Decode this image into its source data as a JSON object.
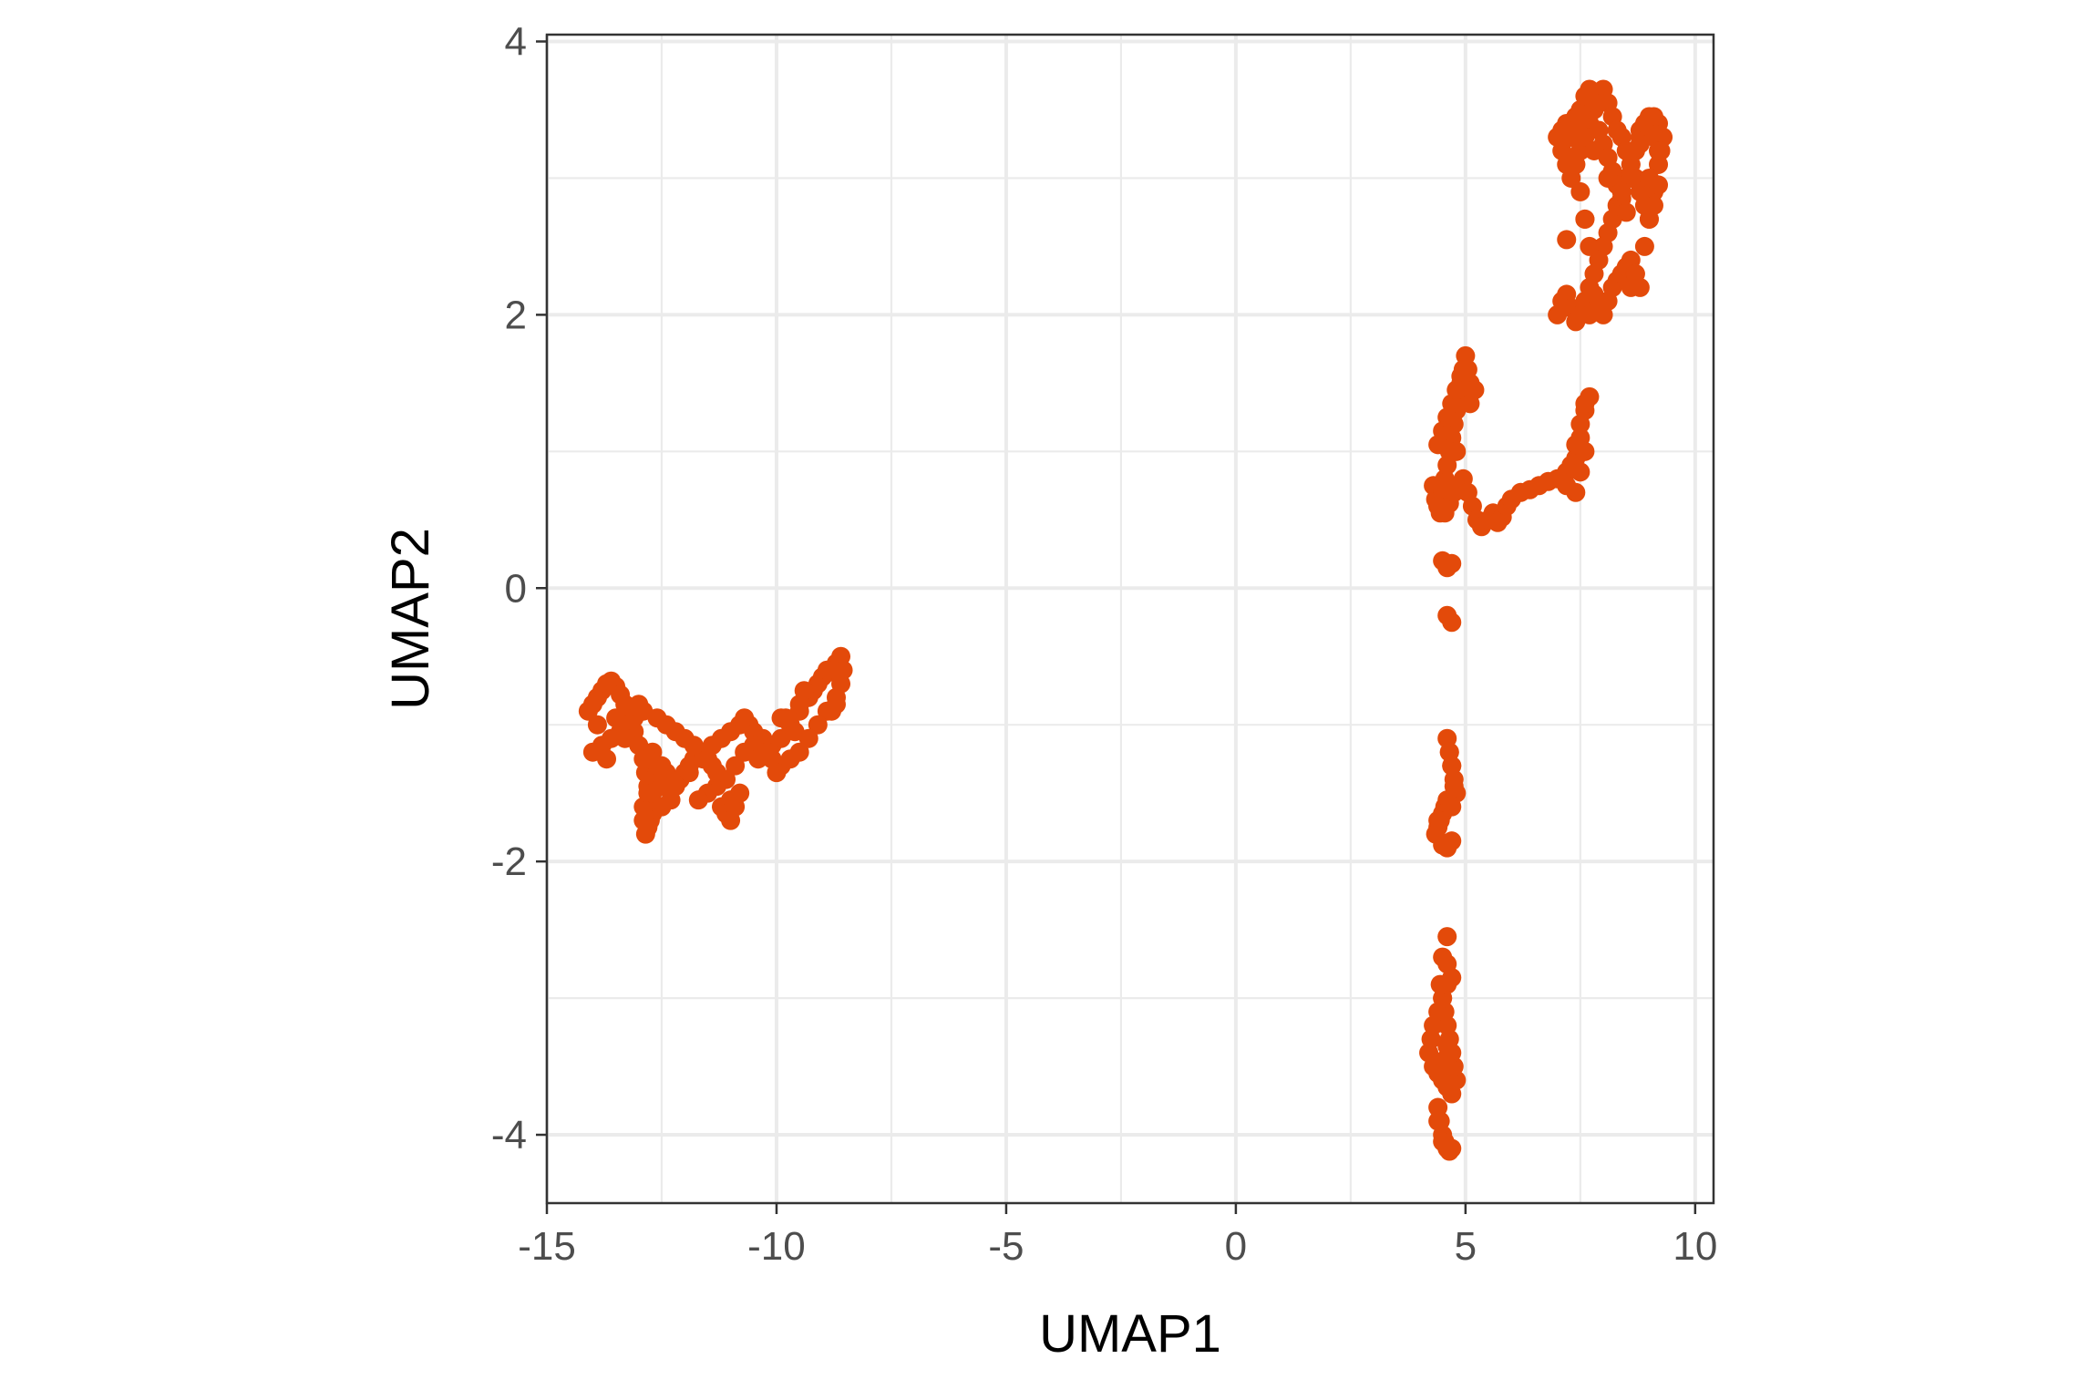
{
  "chart_data": {
    "type": "scatter",
    "title": "",
    "xlabel": "UMAP1",
    "ylabel": "UMAP2",
    "xlim": [
      -15,
      10.4
    ],
    "ylim": [
      -4.5,
      4.05
    ],
    "xticks": [
      -15,
      -10,
      -5,
      0,
      5,
      10
    ],
    "xtick_labels": [
      "-15",
      "-10",
      "-5",
      "0",
      "5",
      "10"
    ],
    "yticks": [
      -4,
      -2,
      0,
      2,
      4
    ],
    "ytick_labels": [
      "-4",
      "-2",
      "0",
      "2",
      "4"
    ],
    "grid": true,
    "legend": "none",
    "point_color": "#E34A0A",
    "panel_border_color": "#333333",
    "grid_color": "#EBEBEB",
    "series": [
      {
        "x": [
          -14.1,
          -14.0,
          -13.9,
          -13.8,
          -13.7,
          -13.6,
          -13.5,
          -13.4,
          -13.3,
          -13.2,
          -13.1,
          -13.0,
          -12.9,
          -12.85,
          -12.8,
          -12.75,
          -12.7,
          -12.75,
          -12.8,
          -12.85,
          -12.9,
          -12.9,
          -12.8,
          -12.7,
          -12.6,
          -12.5,
          -12.4,
          -12.3,
          -12.2,
          -12.1,
          -12.0,
          -11.9,
          -11.8,
          -11.6,
          -11.4,
          -11.2,
          -11.0,
          -10.8,
          -10.7,
          -10.6,
          -10.5,
          -10.3,
          -10.1,
          -9.9,
          -9.7,
          -9.5,
          -9.3,
          -9.1,
          -8.9,
          -8.7,
          -8.6,
          -8.55,
          -8.6,
          -8.7,
          -8.9,
          -9.1,
          -9.3,
          -9.5,
          -9.7,
          -9.9,
          -10.1,
          -10.3,
          -10.5,
          -10.7,
          -10.9,
          -11.1,
          -11.3,
          -11.5,
          -11.0,
          -11.2,
          -11.1,
          -11.0,
          -10.9,
          -10.8,
          -11.3,
          -11.6,
          -11.8,
          -12.0,
          -12.2,
          -12.4,
          -12.6,
          -12.9,
          -13.1,
          -13.2,
          -13.4,
          -13.6,
          -13.8,
          -14.0,
          -13.9,
          -13.7,
          -13.3,
          -12.7,
          -12.5,
          -12.6,
          -12.7,
          -12.5,
          -11.9,
          -10.4,
          -9.9,
          -9.5,
          -9.2,
          -9.0,
          -8.8,
          -9.6,
          -10.0,
          -10.2,
          -11.4,
          -11.7,
          -12.3,
          -12.8,
          -13.5,
          -13.0,
          -9.8,
          -8.9,
          -8.7,
          -9.4,
          -10.7,
          -11.5
        ],
        "y": [
          -0.9,
          -0.85,
          -0.8,
          -0.75,
          -0.7,
          -0.68,
          -0.72,
          -0.78,
          -0.85,
          -0.95,
          -1.05,
          -1.15,
          -1.25,
          -1.35,
          -1.45,
          -1.55,
          -1.65,
          -1.7,
          -1.75,
          -1.8,
          -1.7,
          -1.6,
          -1.5,
          -1.4,
          -1.35,
          -1.3,
          -1.35,
          -1.4,
          -1.45,
          -1.4,
          -1.35,
          -1.3,
          -1.25,
          -1.2,
          -1.15,
          -1.1,
          -1.05,
          -1.0,
          -0.98,
          -1.0,
          -1.05,
          -1.1,
          -1.15,
          -1.1,
          -1.0,
          -0.9,
          -0.8,
          -0.7,
          -0.62,
          -0.55,
          -0.5,
          -0.6,
          -0.7,
          -0.8,
          -0.9,
          -1.0,
          -1.1,
          -1.2,
          -1.25,
          -1.3,
          -1.25,
          -1.2,
          -1.15,
          -1.2,
          -1.3,
          -1.4,
          -1.45,
          -1.5,
          -1.55,
          -1.6,
          -1.65,
          -1.7,
          -1.6,
          -1.5,
          -1.35,
          -1.25,
          -1.15,
          -1.1,
          -1.05,
          -1.0,
          -0.95,
          -0.9,
          -0.95,
          -1.0,
          -1.05,
          -1.1,
          -1.15,
          -1.2,
          -1.0,
          -1.25,
          -1.1,
          -1.5,
          -1.6,
          -1.3,
          -1.2,
          -1.45,
          -1.35,
          -1.25,
          -0.95,
          -0.85,
          -0.75,
          -0.65,
          -0.9,
          -1.05,
          -1.35,
          -1.2,
          -1.3,
          -1.55,
          -1.55,
          -1.25,
          -0.95,
          -0.85,
          -0.95,
          -0.6,
          -0.85,
          -0.75,
          -0.95,
          -1.25
        ]
      },
      {
        "x": [
          4.3,
          4.35,
          4.4,
          4.45,
          4.5,
          4.55,
          4.6,
          4.65,
          4.7,
          4.75,
          4.8,
          4.85,
          4.9,
          4.95,
          5.0,
          5.05,
          5.1,
          4.4,
          4.5,
          4.6,
          4.7,
          4.8,
          4.9,
          5.0,
          5.1,
          5.2,
          4.45,
          4.55,
          4.65,
          4.75,
          4.85,
          4.95,
          5.05,
          5.15,
          5.25,
          5.35,
          5.5,
          5.6,
          5.7,
          5.8,
          5.9,
          6.0,
          6.2,
          6.4,
          6.6,
          6.8,
          7.0,
          7.2,
          7.4,
          7.5,
          7.6,
          7.2,
          7.3,
          7.4,
          7.5,
          7.6,
          7.7,
          7.4,
          7.5,
          7.6,
          4.5,
          4.6,
          4.7,
          4.8,
          4.7,
          4.6,
          4.5,
          4.4,
          4.6,
          4.65,
          4.7,
          4.75,
          4.8,
          4.6,
          4.55,
          4.5,
          4.45,
          4.4,
          4.35,
          4.7,
          4.6,
          4.5,
          4.4,
          4.7,
          4.75,
          4.7,
          4.65,
          4.6,
          4.5,
          4.6,
          4.7,
          4.6,
          4.5,
          4.4,
          4.3,
          4.25,
          4.2,
          4.3,
          4.4,
          4.5,
          4.6,
          4.7,
          4.8,
          4.75,
          4.7,
          4.65,
          4.6,
          4.55,
          4.5,
          4.45,
          4.4,
          4.45,
          4.5,
          4.55,
          4.6,
          4.65,
          4.7,
          4.55,
          4.6,
          4.4,
          4.5,
          4.65
        ],
        "y": [
          0.75,
          0.65,
          0.6,
          0.55,
          0.7,
          0.8,
          0.9,
          1.0,
          1.1,
          1.2,
          1.3,
          1.4,
          1.5,
          1.6,
          1.7,
          1.6,
          1.5,
          1.05,
          1.15,
          1.25,
          1.35,
          1.45,
          1.55,
          1.45,
          1.35,
          1.45,
          0.6,
          0.55,
          0.62,
          0.7,
          0.75,
          0.8,
          0.7,
          0.6,
          0.5,
          0.45,
          0.5,
          0.55,
          0.48,
          0.52,
          0.6,
          0.65,
          0.7,
          0.72,
          0.75,
          0.78,
          0.8,
          0.85,
          0.95,
          1.1,
          1.3,
          0.75,
          0.9,
          1.05,
          1.2,
          1.35,
          1.4,
          0.7,
          0.85,
          1.0,
          0.2,
          0.15,
          0.18,
          1.0,
          -0.25,
          -0.2,
          0.72,
          0.6,
          -1.1,
          -1.2,
          -1.3,
          -1.4,
          -1.5,
          -1.55,
          -1.6,
          -1.65,
          -1.7,
          -1.75,
          -1.8,
          -1.85,
          -1.9,
          -1.88,
          -1.7,
          -1.6,
          -1.45,
          -1.3,
          -1.2,
          -2.55,
          -2.7,
          -2.75,
          -2.85,
          -2.9,
          -3.0,
          -3.1,
          -3.2,
          -3.3,
          -3.4,
          -3.5,
          -3.55,
          -3.6,
          -3.65,
          -3.7,
          -3.6,
          -3.5,
          -3.4,
          -3.3,
          -3.2,
          -3.1,
          -3.0,
          -2.9,
          -3.8,
          -3.9,
          -4.0,
          -4.05,
          -4.1,
          -4.12,
          -4.1,
          -3.45,
          -3.35,
          -3.9,
          -4.05,
          -4.1
        ]
      },
      {
        "x": [
          7.0,
          7.1,
          7.2,
          7.3,
          7.4,
          7.5,
          7.6,
          7.7,
          7.8,
          7.9,
          8.0,
          8.1,
          8.2,
          8.3,
          8.4,
          8.5,
          8.6,
          8.7,
          8.8,
          8.9,
          9.0,
          9.1,
          9.2,
          9.3,
          9.2,
          9.1,
          9.0,
          8.9,
          8.8,
          8.7,
          8.6,
          8.5,
          8.4,
          8.3,
          8.2,
          8.1,
          8.0,
          7.9,
          7.8,
          7.7,
          7.6,
          7.5,
          7.4,
          7.3,
          7.2,
          7.1,
          7.0,
          7.1,
          7.2,
          7.3,
          7.4,
          7.5,
          7.6,
          7.7,
          7.8,
          7.9,
          8.0,
          8.1,
          8.2,
          8.3,
          8.4,
          8.5,
          8.6,
          8.7,
          8.8,
          8.9,
          9.0,
          9.1,
          7.3,
          7.4,
          7.5,
          7.6,
          7.7,
          7.8,
          7.9,
          8.0,
          8.1,
          8.2,
          8.3,
          8.4,
          8.5,
          8.6,
          8.7,
          8.8,
          8.9,
          9.0,
          9.1,
          9.2,
          7.2,
          7.5,
          7.8,
          8.1,
          8.4,
          8.7,
          9.0,
          9.2,
          7.6,
          7.7,
          7.2,
          7.9,
          8.6,
          8.8,
          9.25,
          7.35,
          7.55
        ],
        "y": [
          2.0,
          2.1,
          2.15,
          2.05,
          1.95,
          2.0,
          2.1,
          2.2,
          2.15,
          2.05,
          2.0,
          2.1,
          2.2,
          2.25,
          2.3,
          2.35,
          2.4,
          2.3,
          2.2,
          2.5,
          2.7,
          2.9,
          3.1,
          3.3,
          3.4,
          3.45,
          3.4,
          3.35,
          3.3,
          3.2,
          3.1,
          3.0,
          2.9,
          2.8,
          2.7,
          2.6,
          2.5,
          2.4,
          2.3,
          2.5,
          2.7,
          2.9,
          3.1,
          3.3,
          3.4,
          3.35,
          3.3,
          3.2,
          3.1,
          3.0,
          3.1,
          3.2,
          3.3,
          3.4,
          3.5,
          3.6,
          3.65,
          3.55,
          3.45,
          3.35,
          3.3,
          3.2,
          3.1,
          3.0,
          2.9,
          2.8,
          2.7,
          2.8,
          3.3,
          3.45,
          3.5,
          3.6,
          3.65,
          3.55,
          3.35,
          3.25,
          3.15,
          3.05,
          2.95,
          2.85,
          2.75,
          3.0,
          3.2,
          3.35,
          3.4,
          3.45,
          3.3,
          3.2,
          3.35,
          3.4,
          3.2,
          3.0,
          2.9,
          2.3,
          3.0,
          2.95,
          2.7,
          2.0,
          2.55,
          2.1,
          2.2,
          3.25,
          3.2,
          3.15,
          3.3
        ],
        "note_shape": "upper-right cluster"
      }
    ]
  }
}
